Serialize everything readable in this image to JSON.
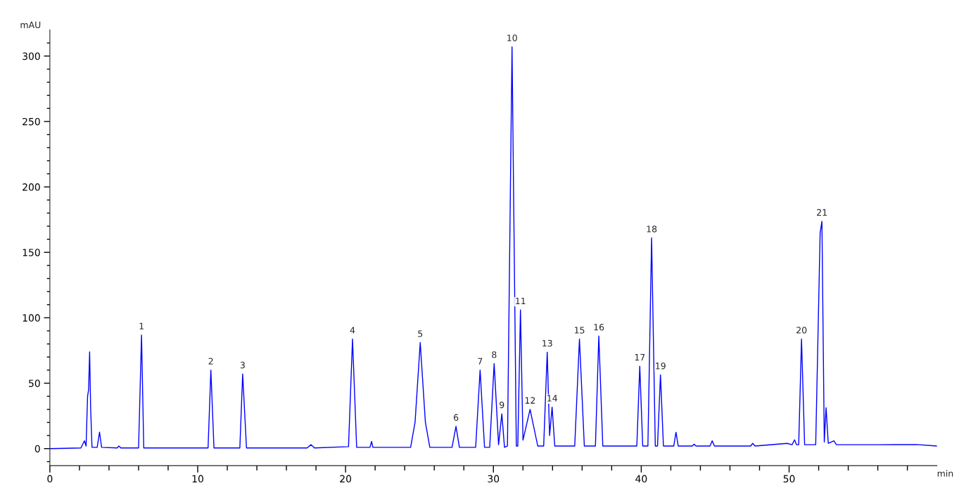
{
  "chart_data": {
    "type": "line",
    "xlabel": "min",
    "ylabel": "mAU",
    "xlim": [
      0,
      60
    ],
    "ylim": [
      -13,
      320
    ],
    "xticks": [
      0,
      {
        "value": 2,
        "label": null
      },
      {
        "value": 4,
        "label": null
      },
      {
        "value": 6,
        "label": null
      },
      {
        "value": 8,
        "label": null
      },
      10,
      {
        "value": 12,
        "label": null
      },
      {
        "value": 14,
        "label": null
      },
      {
        "value": 16,
        "label": null
      },
      {
        "value": 18,
        "label": null
      },
      20,
      {
        "value": 22,
        "label": null
      },
      {
        "value": 24,
        "label": null
      },
      {
        "value": 26,
        "label": null
      },
      {
        "value": 28,
        "label": null
      },
      30,
      {
        "value": 32,
        "label": null
      },
      {
        "value": 34,
        "label": null
      },
      {
        "value": 36,
        "label": null
      },
      {
        "value": 38,
        "label": null
      },
      40,
      {
        "value": 42,
        "label": null
      },
      {
        "value": 44,
        "label": null
      },
      {
        "value": 46,
        "label": null
      },
      {
        "value": 48,
        "label": null
      },
      50,
      {
        "value": 52,
        "label": null
      },
      {
        "value": 54,
        "label": null
      },
      {
        "value": 56,
        "label": null
      },
      {
        "value": 58,
        "label": null
      }
    ],
    "yticks": [
      {
        "value": -10,
        "label": null
      },
      0,
      {
        "value": 10,
        "label": null
      },
      {
        "value": 20,
        "label": null
      },
      {
        "value": 30,
        "label": null
      },
      {
        "value": 40,
        "label": null
      },
      50,
      {
        "value": 60,
        "label": null
      },
      {
        "value": 70,
        "label": null
      },
      {
        "value": 80,
        "label": null
      },
      {
        "value": 90,
        "label": null
      },
      100,
      {
        "value": 110,
        "label": null
      },
      {
        "value": 120,
        "label": null
      },
      {
        "value": 130,
        "label": null
      },
      {
        "value": 140,
        "label": null
      },
      150,
      {
        "value": 160,
        "label": null
      },
      {
        "value": 170,
        "label": null
      },
      {
        "value": 180,
        "label": null
      },
      {
        "value": 190,
        "label": null
      },
      200,
      {
        "value": 210,
        "label": null
      },
      {
        "value": 220,
        "label": null
      },
      {
        "value": 230,
        "label": null
      },
      {
        "value": 240,
        "label": null
      },
      250,
      {
        "value": 260,
        "label": null
      },
      {
        "value": 270,
        "label": null
      },
      {
        "value": 280,
        "label": null
      },
      {
        "value": 290,
        "label": null
      },
      300,
      {
        "value": 310,
        "label": null
      }
    ],
    "grid": false,
    "legend": false,
    "marker": "none",
    "line_style": "solid",
    "series": [
      {
        "color": "#0000ff",
        "x": [
          0,
          2.1,
          2.34,
          2.45,
          2.55,
          2.62,
          2.69,
          2.76,
          2.85,
          3.2,
          3.36,
          3.5,
          4.55,
          4.67,
          4.8,
          6.0,
          6.2,
          6.35,
          10.7,
          10.89,
          11.1,
          12.85,
          13.04,
          13.3,
          17.4,
          17.66,
          17.9,
          20.2,
          20.47,
          20.75,
          21.65,
          21.76,
          21.85,
          24.4,
          24.7,
          25.05,
          25.4,
          25.7,
          27.2,
          27.47,
          27.7,
          28.8,
          29.1,
          29.4,
          29.75,
          30.05,
          30.35,
          30.57,
          30.75,
          30.95,
          31.26,
          31.55,
          31.65,
          31.83,
          32.0,
          32.48,
          33.0,
          33.4,
          33.64,
          33.8,
          33.97,
          34.15,
          35.5,
          35.82,
          36.15,
          36.9,
          37.13,
          37.4,
          39.7,
          39.9,
          40.1,
          40.45,
          40.7,
          40.95,
          41.1,
          41.3,
          41.5,
          42.2,
          42.35,
          42.5,
          43.45,
          43.57,
          43.7,
          44.65,
          44.8,
          44.95,
          47.4,
          47.54,
          47.7,
          49.86,
          50.2,
          50.37,
          50.5,
          50.65,
          50.84,
          51.05,
          51.8,
          52.1,
          52.22,
          52.38,
          52.5,
          52.65,
          53.03,
          53.2,
          56,
          58.6,
          60
        ],
        "values": [
          0,
          0.5,
          6,
          2,
          40,
          45,
          74,
          30,
          1,
          1,
          12.6,
          1,
          0.5,
          2,
          0.5,
          0.5,
          86.8,
          0.5,
          0.5,
          60,
          0.5,
          0.5,
          57,
          0.5,
          0.5,
          3,
          0.5,
          1.5,
          83.7,
          1,
          1,
          5.5,
          1,
          1,
          20,
          81,
          20,
          1,
          1,
          17,
          1,
          1,
          60,
          1,
          1,
          65,
          3,
          26.6,
          1,
          2,
          307,
          2,
          2,
          106,
          6.5,
          30,
          2,
          2,
          73.7,
          10,
          31.7,
          2,
          2,
          83.7,
          2,
          2,
          86,
          2,
          2,
          63,
          2,
          2,
          161,
          2,
          2,
          56.4,
          2,
          2,
          12.5,
          2,
          2,
          3.4,
          2,
          2,
          6,
          2,
          2,
          4,
          2,
          4,
          3,
          6.7,
          3,
          3,
          83.7,
          3,
          3,
          165,
          173.7,
          5,
          31.3,
          4,
          6,
          3,
          3,
          3.1,
          2
        ]
      }
    ],
    "annotations": [
      {
        "text": "1",
        "x": 6.2,
        "y": 86.8
      },
      {
        "text": "2",
        "x": 10.89,
        "y": 60
      },
      {
        "text": "3",
        "x": 13.04,
        "y": 57
      },
      {
        "text": "4",
        "x": 20.47,
        "y": 83.7
      },
      {
        "text": "5",
        "x": 25.05,
        "y": 81
      },
      {
        "text": "6",
        "x": 27.47,
        "y": 17
      },
      {
        "text": "7",
        "x": 29.1,
        "y": 60
      },
      {
        "text": "8",
        "x": 30.05,
        "y": 65
      },
      {
        "text": "9",
        "x": 30.57,
        "y": 26.6
      },
      {
        "text": "10",
        "x": 31.26,
        "y": 307
      },
      {
        "text": "11",
        "x": 31.83,
        "y": 106
      },
      {
        "text": "12",
        "x": 32.48,
        "y": 30
      },
      {
        "text": "13",
        "x": 33.64,
        "y": 73.7
      },
      {
        "text": "14",
        "x": 33.97,
        "y": 31.7
      },
      {
        "text": "15",
        "x": 35.82,
        "y": 83.7
      },
      {
        "text": "16",
        "x": 37.13,
        "y": 86
      },
      {
        "text": "17",
        "x": 39.9,
        "y": 63
      },
      {
        "text": "18",
        "x": 40.7,
        "y": 161
      },
      {
        "text": "19",
        "x": 41.3,
        "y": 56.4
      },
      {
        "text": "20",
        "x": 50.84,
        "y": 83.7
      },
      {
        "text": "21",
        "x": 52.22,
        "y": 173.7
      }
    ]
  }
}
